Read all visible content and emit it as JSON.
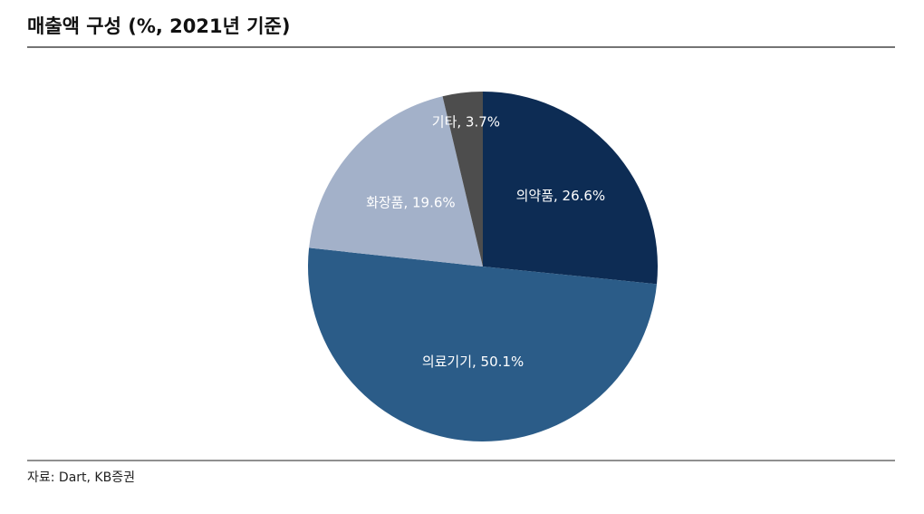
{
  "chart_data": {
    "type": "pie",
    "title": "매출액 구성 (%, 2021년 기준)",
    "values": [
      26.6,
      50.1,
      19.6,
      3.7
    ],
    "value_labels": [
      "의약품, 26.6%",
      "의료기기, 50.1%",
      "화장품, 19.6%",
      "기타, 3.7%"
    ],
    "colors": [
      "#0d2c54",
      "#2b5c88",
      "#a3b1c9",
      "#4d4d4d"
    ],
    "source": "자료: Dart, KB증권"
  }
}
